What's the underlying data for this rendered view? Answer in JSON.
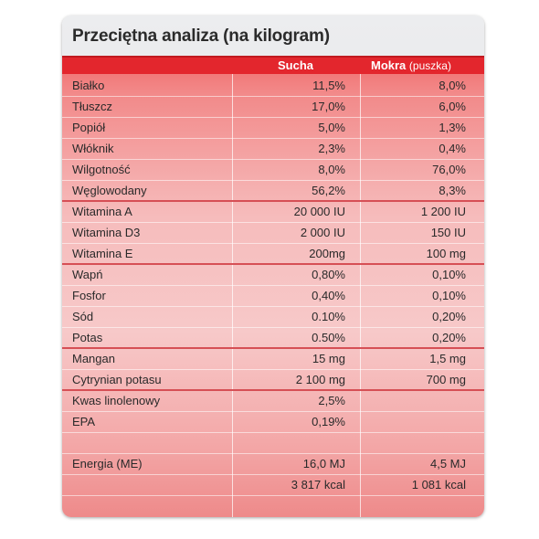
{
  "title": "Przeciętna analiza (na kilogram)",
  "header": {
    "col1": "Sucha",
    "col2": "Mokra",
    "col2_sub": "(puszka)"
  },
  "rows": [
    {
      "name": "Białko",
      "dry": "11,5%",
      "wet": "8,0%"
    },
    {
      "name": "Tłuszcz",
      "dry": "17,0%",
      "wet": "6,0%"
    },
    {
      "name": "Popiół",
      "dry": "5,0%",
      "wet": "1,3%"
    },
    {
      "name": "Włóknik",
      "dry": "2,3%",
      "wet": "0,4%"
    },
    {
      "name": "Wilgotność",
      "dry": "8,0%",
      "wet": "76,0%"
    },
    {
      "name": "Węglowodany",
      "dry": "56,2%",
      "wet": "8,3%"
    },
    {
      "name": "Witamina A",
      "dry": "20 000 IU",
      "wet": "1 200 IU"
    },
    {
      "name": "Witamina D3",
      "dry": "2 000 IU",
      "wet": "150 IU"
    },
    {
      "name": "Witamina E",
      "dry": "200mg",
      "wet": "100 mg"
    },
    {
      "name": "Wapń",
      "dry": "0,80%",
      "wet": "0,10%"
    },
    {
      "name": "Fosfor",
      "dry": "0,40%",
      "wet": "0,10%"
    },
    {
      "name": "Sód",
      "dry": "0.10%",
      "wet": "0,20%"
    },
    {
      "name": "Potas",
      "dry": "0.50%",
      "wet": "0,20%"
    },
    {
      "name": "Mangan",
      "dry": "15 mg",
      "wet": "1,5 mg"
    },
    {
      "name": "Cytrynian potasu",
      "dry": "2 100 mg",
      "wet": "700 mg"
    },
    {
      "name": "Kwas linolenowy",
      "dry": "2,5%",
      "wet": ""
    },
    {
      "name": "EPA",
      "dry": "0,19%",
      "wet": ""
    },
    {
      "name": "",
      "dry": "",
      "wet": ""
    },
    {
      "name": "Energia (ME)",
      "dry": "16,0 MJ",
      "wet": "4,5 MJ"
    },
    {
      "name": "",
      "dry": "3 817 kcal",
      "wet": "1 081 kcal"
    }
  ]
}
